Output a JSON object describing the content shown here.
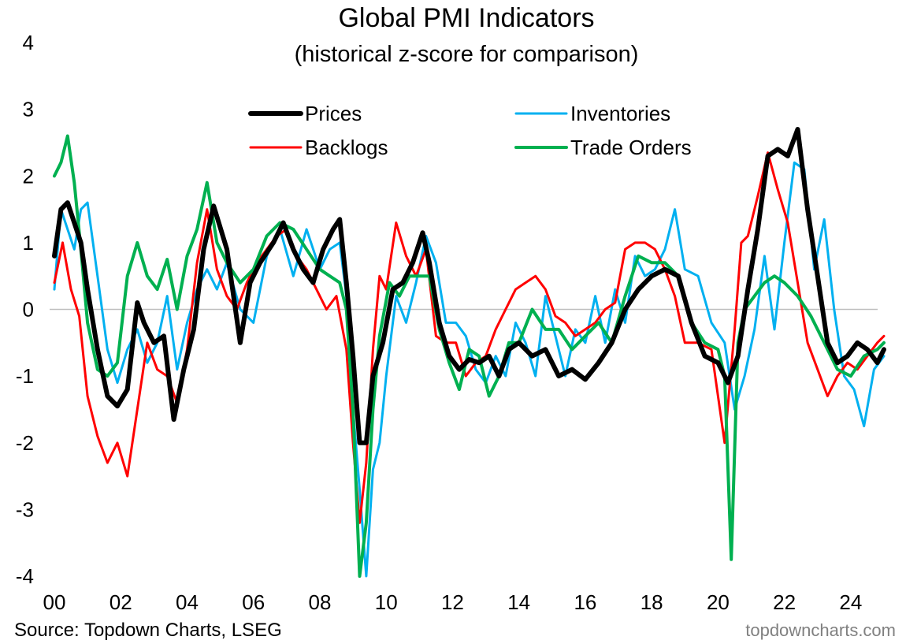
{
  "chart_data": {
    "type": "line",
    "title": "Global PMI Indicators",
    "subtitle": "(historical z-score for comparison)",
    "ylim": [
      -4,
      4
    ],
    "y_ticks": [
      "4",
      "3",
      "2",
      "1",
      "0",
      "-1",
      "-2",
      "-3",
      "-4"
    ],
    "x_range": [
      2000.0,
      2025.0
    ],
    "x_ticks": [
      "00",
      "02",
      "04",
      "06",
      "08",
      "10",
      "12",
      "14",
      "16",
      "18",
      "20",
      "22",
      "24"
    ],
    "zero_line": true,
    "grid": false,
    "legend_placement": "top-center",
    "source": "Source: Topdown Charts, LSEG",
    "watermark": "topdowncharts.com",
    "series": [
      {
        "name": "Prices",
        "color": "#000000",
        "x": [
          2000.0,
          2000.2,
          2000.4,
          2000.6,
          2000.8,
          2001.0,
          2001.3,
          2001.6,
          2001.9,
          2002.2,
          2002.5,
          2002.7,
          2003.0,
          2003.3,
          2003.6,
          2003.9,
          2004.2,
          2004.5,
          2004.8,
          2005.2,
          2005.6,
          2005.9,
          2006.2,
          2006.6,
          2006.9,
          2007.2,
          2007.5,
          2007.8,
          2008.1,
          2008.4,
          2008.6,
          2008.8,
          2009.0,
          2009.2,
          2009.4,
          2009.6,
          2009.9,
          2010.2,
          2010.5,
          2010.8,
          2011.1,
          2011.3,
          2011.6,
          2011.9,
          2012.2,
          2012.5,
          2012.8,
          2013.1,
          2013.4,
          2013.7,
          2014.0,
          2014.4,
          2014.8,
          2015.2,
          2015.6,
          2016.0,
          2016.4,
          2016.8,
          2017.2,
          2017.6,
          2018.0,
          2018.4,
          2018.8,
          2019.2,
          2019.6,
          2020.0,
          2020.3,
          2020.6,
          2020.9,
          2021.2,
          2021.5,
          2021.8,
          2022.1,
          2022.4,
          2022.7,
          2023.0,
          2023.3,
          2023.6,
          2023.9,
          2024.2,
          2024.5,
          2024.8,
          2025.0
        ],
        "values": [
          0.8,
          1.5,
          1.6,
          1.3,
          1.0,
          0.3,
          -0.6,
          -1.3,
          -1.45,
          -1.2,
          0.1,
          -0.2,
          -0.5,
          -0.4,
          -1.65,
          -0.9,
          -0.3,
          0.9,
          1.55,
          0.9,
          -0.5,
          0.4,
          0.7,
          1.0,
          1.3,
          0.9,
          0.6,
          0.4,
          0.9,
          1.2,
          1.35,
          0.4,
          -0.7,
          -2.0,
          -2.0,
          -1.0,
          -0.5,
          0.3,
          0.4,
          0.7,
          1.15,
          0.7,
          -0.2,
          -0.7,
          -0.9,
          -0.75,
          -0.8,
          -0.7,
          -1.0,
          -0.6,
          -0.5,
          -0.7,
          -0.6,
          -1.0,
          -0.9,
          -1.05,
          -0.8,
          -0.5,
          0.0,
          0.3,
          0.5,
          0.6,
          0.5,
          -0.2,
          -0.7,
          -0.8,
          -1.1,
          -0.7,
          0.3,
          1.2,
          2.3,
          2.4,
          2.3,
          2.7,
          1.5,
          0.5,
          -0.5,
          -0.8,
          -0.7,
          -0.5,
          -0.6,
          -0.8,
          -0.6
        ]
      },
      {
        "name": "Inventories",
        "color": "#00B0F0",
        "x": [
          2000.0,
          2000.2,
          2000.4,
          2000.6,
          2000.8,
          2001.0,
          2001.3,
          2001.6,
          2001.9,
          2002.2,
          2002.5,
          2002.8,
          2003.1,
          2003.4,
          2003.7,
          2004.0,
          2004.3,
          2004.6,
          2004.9,
          2005.2,
          2005.6,
          2006.0,
          2006.4,
          2006.8,
          2007.2,
          2007.6,
          2008.0,
          2008.3,
          2008.6,
          2008.8,
          2009.0,
          2009.2,
          2009.4,
          2009.6,
          2009.8,
          2010.0,
          2010.3,
          2010.6,
          2010.9,
          2011.2,
          2011.5,
          2011.8,
          2012.1,
          2012.4,
          2012.7,
          2013.0,
          2013.3,
          2013.6,
          2013.9,
          2014.2,
          2014.5,
          2014.8,
          2015.1,
          2015.4,
          2015.7,
          2016.0,
          2016.3,
          2016.6,
          2016.9,
          2017.2,
          2017.5,
          2017.8,
          2018.1,
          2018.4,
          2018.7,
          2019.0,
          2019.4,
          2019.8,
          2020.2,
          2020.5,
          2020.8,
          2021.1,
          2021.4,
          2021.7,
          2022.0,
          2022.3,
          2022.6,
          2022.9,
          2023.2,
          2023.5,
          2023.8,
          2024.1,
          2024.4,
          2024.7,
          2025.0
        ],
        "values": [
          0.3,
          1.5,
          1.2,
          0.9,
          1.5,
          1.6,
          0.5,
          -0.6,
          -1.1,
          -0.6,
          -0.3,
          -0.8,
          -0.5,
          0.2,
          -0.9,
          -0.2,
          0.3,
          0.6,
          0.3,
          0.7,
          0.0,
          -0.2,
          0.8,
          1.2,
          0.5,
          1.2,
          0.6,
          0.9,
          1.0,
          0.2,
          -1.5,
          -2.7,
          -4.0,
          -2.4,
          -2.0,
          -1.0,
          0.2,
          -0.2,
          0.4,
          1.1,
          0.7,
          -0.2,
          -0.2,
          -0.4,
          -0.9,
          -1.1,
          -0.7,
          -1.0,
          -0.2,
          -0.5,
          -1.0,
          0.2,
          -0.4,
          -1.0,
          -0.3,
          -0.5,
          0.2,
          -0.5,
          0.3,
          -0.2,
          0.8,
          0.5,
          0.6,
          0.9,
          1.5,
          0.6,
          0.5,
          -0.2,
          -0.5,
          -1.5,
          -1.0,
          -0.3,
          0.8,
          -0.3,
          1.0,
          2.2,
          2.1,
          0.6,
          1.35,
          0.0,
          -1.0,
          -1.2,
          -1.75,
          -0.9,
          -0.7
        ]
      },
      {
        "name": "Backlogs",
        "color": "#FF0000",
        "x": [
          2000.0,
          2000.25,
          2000.5,
          2000.75,
          2001.0,
          2001.3,
          2001.6,
          2001.9,
          2002.2,
          2002.5,
          2002.8,
          2003.1,
          2003.4,
          2003.7,
          2004.0,
          2004.3,
          2004.6,
          2004.9,
          2005.2,
          2005.5,
          2005.8,
          2006.1,
          2006.4,
          2006.7,
          2007.0,
          2007.3,
          2007.6,
          2007.9,
          2008.2,
          2008.5,
          2008.8,
          2009.0,
          2009.2,
          2009.4,
          2009.6,
          2009.8,
          2010.0,
          2010.3,
          2010.6,
          2010.9,
          2011.2,
          2011.5,
          2011.8,
          2012.1,
          2012.4,
          2012.7,
          2013.0,
          2013.3,
          2013.6,
          2013.9,
          2014.2,
          2014.5,
          2014.8,
          2015.1,
          2015.4,
          2015.7,
          2016.0,
          2016.3,
          2016.6,
          2016.9,
          2017.2,
          2017.5,
          2017.8,
          2018.1,
          2018.4,
          2018.7,
          2019.0,
          2019.4,
          2019.8,
          2020.2,
          2020.5,
          2020.7,
          2020.9,
          2021.2,
          2021.5,
          2021.8,
          2022.1,
          2022.4,
          2022.7,
          2023.0,
          2023.3,
          2023.6,
          2023.9,
          2024.2,
          2024.5,
          2024.8,
          2025.0
        ],
        "values": [
          0.4,
          1.0,
          0.3,
          -0.1,
          -1.3,
          -1.9,
          -2.3,
          -2.0,
          -2.5,
          -1.5,
          -0.5,
          -0.9,
          -1.0,
          -1.4,
          -0.6,
          0.7,
          1.5,
          0.6,
          0.2,
          0.0,
          0.4,
          0.7,
          0.9,
          1.1,
          1.2,
          0.8,
          0.6,
          0.3,
          0.0,
          0.2,
          -0.6,
          -2.0,
          -3.2,
          -2.3,
          -0.6,
          0.5,
          0.3,
          1.3,
          0.8,
          0.5,
          0.9,
          -0.4,
          -0.5,
          -0.5,
          -1.0,
          -0.8,
          -0.7,
          -0.3,
          0.0,
          0.3,
          0.4,
          0.5,
          0.3,
          -0.1,
          -0.2,
          -0.4,
          -0.3,
          -0.2,
          0.0,
          0.1,
          0.9,
          1.0,
          1.0,
          0.9,
          0.6,
          0.2,
          -0.5,
          -0.5,
          -0.6,
          -2.0,
          -0.3,
          1.0,
          1.1,
          1.7,
          2.35,
          1.8,
          1.3,
          0.4,
          -0.5,
          -0.9,
          -1.3,
          -1.0,
          -0.8,
          -0.9,
          -0.7,
          -0.5,
          -0.4
        ]
      },
      {
        "name": "Trade Orders",
        "color": "#00B050",
        "x": [
          2000.0,
          2000.2,
          2000.4,
          2000.6,
          2000.8,
          2001.0,
          2001.3,
          2001.6,
          2001.9,
          2002.2,
          2002.5,
          2002.8,
          2003.1,
          2003.4,
          2003.7,
          2004.0,
          2004.3,
          2004.6,
          2004.9,
          2005.2,
          2005.6,
          2006.0,
          2006.4,
          2006.8,
          2007.2,
          2007.6,
          2008.0,
          2008.3,
          2008.6,
          2008.8,
          2009.0,
          2009.2,
          2009.4,
          2009.6,
          2009.8,
          2010.1,
          2010.4,
          2010.7,
          2011.0,
          2011.3,
          2011.6,
          2011.9,
          2012.2,
          2012.5,
          2012.8,
          2013.1,
          2013.4,
          2013.7,
          2014.0,
          2014.4,
          2014.8,
          2015.2,
          2015.6,
          2016.0,
          2016.4,
          2016.8,
          2017.2,
          2017.6,
          2018.0,
          2018.4,
          2018.8,
          2019.2,
          2019.6,
          2020.0,
          2020.2,
          2020.4,
          2020.6,
          2020.8,
          2021.1,
          2021.4,
          2021.7,
          2022.0,
          2022.4,
          2022.8,
          2023.2,
          2023.6,
          2024.0,
          2024.4,
          2024.8,
          2025.0
        ],
        "values": [
          2.0,
          2.2,
          2.6,
          1.9,
          0.9,
          -0.2,
          -0.9,
          -1.0,
          -0.8,
          0.5,
          1.0,
          0.5,
          0.3,
          0.75,
          0.0,
          0.8,
          1.2,
          1.9,
          1.0,
          0.7,
          0.4,
          0.6,
          1.1,
          1.3,
          1.2,
          0.9,
          0.6,
          0.5,
          0.4,
          0.0,
          -1.5,
          -4.0,
          -3.2,
          -1.5,
          -0.4,
          0.4,
          0.2,
          0.5,
          0.5,
          0.5,
          -0.3,
          -0.8,
          -1.2,
          -0.6,
          -0.7,
          -1.3,
          -1.0,
          -0.5,
          -0.5,
          0.0,
          -0.3,
          -0.3,
          -0.6,
          -0.4,
          -0.2,
          -0.5,
          0.2,
          0.8,
          0.7,
          0.7,
          0.5,
          -0.2,
          -0.5,
          -0.6,
          -1.0,
          -3.75,
          -0.5,
          0.0,
          0.2,
          0.4,
          0.5,
          0.4,
          0.2,
          -0.1,
          -0.5,
          -0.9,
          -1.0,
          -0.7,
          -0.6,
          -0.5
        ]
      }
    ]
  }
}
